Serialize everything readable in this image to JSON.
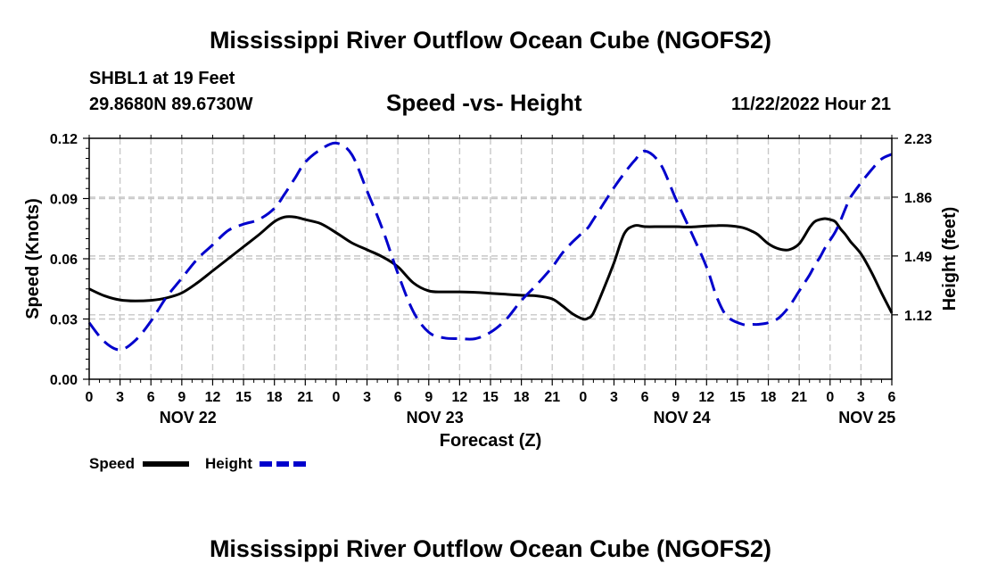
{
  "header": {
    "title": "Mississippi River Outflow Ocean Cube (NGOFS2)",
    "station": "SHBL1 at 19 Feet",
    "coords": "29.8680N  89.6730W",
    "subtitle": "Speed -vs- Height",
    "datetime": "11/22/2022 Hour 21"
  },
  "footer": {
    "title": "Mississippi River Outflow Ocean Cube (NGOFS2)"
  },
  "chart_data": {
    "type": "line",
    "title": "Speed -vs- Height",
    "xlabel": "Forecast (Z)",
    "ylabel": "Speed (Knots)",
    "y2label": "Height (feet)",
    "xlim": [
      0,
      78
    ],
    "ylim": [
      0,
      0.12
    ],
    "y2lim": [
      0.715,
      2.23
    ],
    "grid": true,
    "x_ticks": [
      0,
      3,
      6,
      9,
      12,
      15,
      18,
      21,
      24,
      27,
      30,
      33,
      36,
      39,
      42,
      45,
      48,
      51,
      54,
      57,
      60,
      63,
      66,
      69,
      72,
      75,
      78
    ],
    "x_tick_labels": [
      "0",
      "3",
      "6",
      "9",
      "12",
      "15",
      "18",
      "21",
      "0",
      "3",
      "6",
      "9",
      "12",
      "15",
      "18",
      "21",
      "0",
      "3",
      "6",
      "9",
      "12",
      "15",
      "18",
      "21",
      "0",
      "3",
      "6"
    ],
    "y_ticks": [
      0,
      0.03,
      0.06,
      0.09,
      0.12
    ],
    "y_tick_labels": [
      "0.00",
      "0.03",
      "0.06",
      "0.09",
      "0.12"
    ],
    "y2_ticks": [
      1.12,
      1.49,
      1.86,
      2.23
    ],
    "y2_tick_labels": [
      "1.12",
      "1.49",
      "1.86",
      "2.23"
    ],
    "date_labels": [
      {
        "x": 9.6,
        "label": "NOV 22"
      },
      {
        "x": 33.6,
        "label": "NOV 23"
      },
      {
        "x": 57.6,
        "label": "NOV 24"
      },
      {
        "x": 75.6,
        "label": "NOV 25"
      }
    ],
    "legend": [
      {
        "name": "Speed",
        "color": "#000000",
        "dash": false
      },
      {
        "name": "Height",
        "color": "#0000cc",
        "dash": true
      }
    ],
    "series": [
      {
        "name": "Speed",
        "axis": "left",
        "color": "#000000",
        "x": [
          0,
          1.5,
          3,
          4.5,
          6,
          7.5,
          9,
          10.5,
          12,
          13.5,
          15,
          16.5,
          18,
          19,
          20,
          21,
          22.5,
          24,
          25.5,
          27,
          28.5,
          30,
          31.5,
          33,
          34.5,
          36,
          37.5,
          39,
          40.5,
          42,
          43.5,
          45,
          46,
          47,
          48,
          48.5,
          49,
          50,
          51,
          52,
          53,
          54,
          55.5,
          57,
          58.5,
          60,
          61,
          62,
          63.5,
          64.5,
          65,
          66,
          67,
          68,
          69,
          70,
          70.5,
          71,
          71.5,
          72,
          72.5,
          73,
          73.5,
          74,
          75,
          76,
          77,
          78
        ],
        "values": [
          0.045,
          0.0415,
          0.0395,
          0.039,
          0.0393,
          0.0405,
          0.043,
          0.048,
          0.054,
          0.06,
          0.066,
          0.072,
          0.0785,
          0.0808,
          0.0808,
          0.0795,
          0.0775,
          0.073,
          0.068,
          0.0645,
          0.061,
          0.056,
          0.048,
          0.044,
          0.0435,
          0.0435,
          0.0433,
          0.0428,
          0.0423,
          0.0418,
          0.0415,
          0.04,
          0.0365,
          0.0325,
          0.03,
          0.0305,
          0.033,
          0.045,
          0.058,
          0.0725,
          0.0765,
          0.076,
          0.076,
          0.076,
          0.0758,
          0.0763,
          0.0765,
          0.0765,
          0.0755,
          0.0735,
          0.072,
          0.0675,
          0.065,
          0.0645,
          0.0675,
          0.0755,
          0.0785,
          0.0795,
          0.08,
          0.0795,
          0.0785,
          0.075,
          0.072,
          0.0685,
          0.0625,
          0.0535,
          0.043,
          0.033
        ]
      },
      {
        "name": "Height",
        "axis": "right",
        "color": "#0000cc",
        "x": [
          0,
          1.5,
          3,
          4.5,
          6,
          7.5,
          9,
          10.5,
          12,
          13.5,
          15,
          16.5,
          18,
          19,
          20,
          21,
          22.5,
          24,
          25.5,
          27,
          28.5,
          30,
          31.5,
          33,
          34.5,
          36,
          37.5,
          39,
          40.5,
          42,
          43.5,
          45,
          46,
          47,
          48,
          48.5,
          49,
          50,
          51,
          52,
          53,
          54,
          55.5,
          57,
          58.5,
          60,
          61,
          62,
          63.5,
          64.5,
          65,
          66,
          67,
          68,
          69,
          70,
          70.5,
          71,
          71.5,
          72,
          72.5,
          73,
          73.5,
          74,
          75,
          76,
          77,
          78
        ],
        "values": [
          1.07,
          0.95,
          0.9,
          0.96,
          1.08,
          1.23,
          1.35,
          1.47,
          1.56,
          1.65,
          1.69,
          1.72,
          1.79,
          1.88,
          1.98,
          2.08,
          2.16,
          2.2,
          2.13,
          1.9,
          1.66,
          1.38,
          1.14,
          1.01,
          0.975,
          0.97,
          0.97,
          1.01,
          1.09,
          1.21,
          1.31,
          1.42,
          1.51,
          1.58,
          1.64,
          1.67,
          1.72,
          1.82,
          1.92,
          2.01,
          2.09,
          2.15,
          2.07,
          1.85,
          1.64,
          1.42,
          1.23,
          1.11,
          1.06,
          1.06,
          1.06,
          1.07,
          1.1,
          1.17,
          1.27,
          1.37,
          1.43,
          1.48,
          1.54,
          1.59,
          1.64,
          1.71,
          1.79,
          1.86,
          1.95,
          2.03,
          2.1,
          2.13
        ]
      }
    ]
  }
}
